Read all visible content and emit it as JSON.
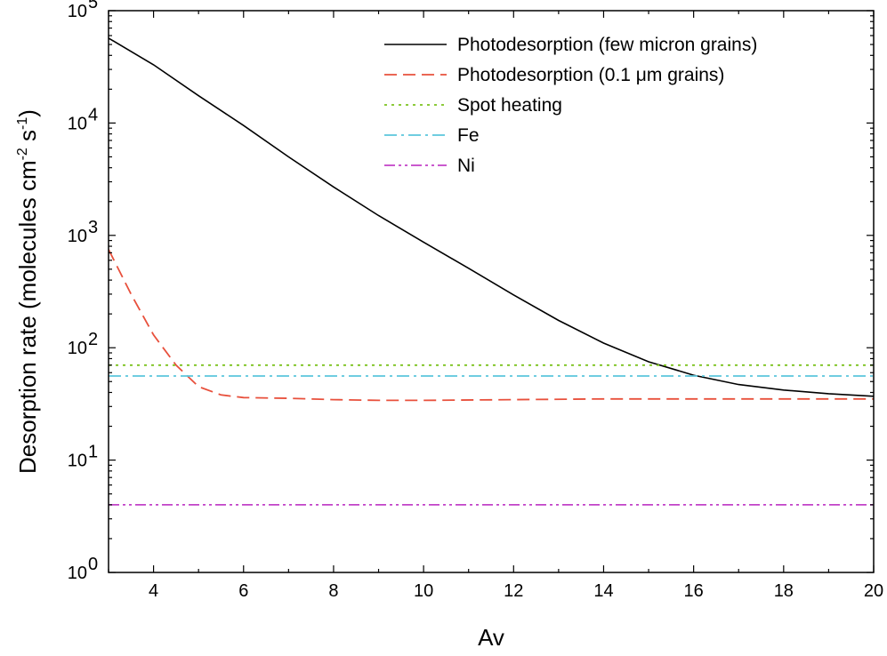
{
  "chart_data": {
    "type": "line",
    "title": "",
    "xlabel": "Av",
    "ylabel": "Desorption rate (molecules cm",
    "ylabel_sup1": "-2",
    "ylabel_mid": " s",
    "ylabel_sup2": "-1",
    "ylabel_end": ")",
    "xlim": [
      3,
      20
    ],
    "ylim": [
      1,
      100000
    ],
    "yscale": "log",
    "xticks": [
      4,
      6,
      8,
      10,
      12,
      14,
      16,
      18,
      20
    ],
    "xtick_labels": [
      "4",
      "6",
      "8",
      "10",
      "12",
      "14",
      "16",
      "18",
      "20"
    ],
    "yticks": [
      {
        "base": "10",
        "exp": "0"
      },
      {
        "base": "10",
        "exp": "1"
      },
      {
        "base": "10",
        "exp": "2"
      },
      {
        "base": "10",
        "exp": "3"
      },
      {
        "base": "10",
        "exp": "4"
      },
      {
        "base": "10",
        "exp": "5"
      }
    ],
    "grid": false,
    "legend_position": "top-right",
    "series": [
      {
        "name": "Photodesorption (few micron grains)",
        "color": "#000000",
        "style": "solid",
        "x": [
          3,
          4,
          5,
          6,
          7,
          8,
          9,
          10,
          11,
          12,
          13,
          14,
          15,
          16,
          17,
          18,
          19,
          20
        ],
        "y": [
          57000,
          33000,
          17500,
          9500,
          5000,
          2700,
          1500,
          870,
          510,
          295,
          175,
          110,
          75,
          57,
          47,
          42,
          39,
          37
        ]
      },
      {
        "name": "Photodesorption (0.1 μm grains)",
        "color": "#e8503c",
        "style": "dashed",
        "x": [
          3,
          3.5,
          4,
          4.5,
          5,
          5.5,
          6,
          7,
          8,
          9,
          10,
          12,
          14,
          16,
          18,
          20
        ],
        "y": [
          750,
          300,
          130,
          70,
          45,
          38,
          36,
          35.5,
          34.5,
          34,
          34,
          34.5,
          35,
          35,
          35,
          35
        ]
      },
      {
        "name": "Spot heating",
        "color": "#7cc21e",
        "style": "dotted",
        "x": [
          3,
          20
        ],
        "y": [
          70,
          70
        ]
      },
      {
        "name": "Fe",
        "color": "#5bc6dc",
        "style": "dashdot",
        "x": [
          3,
          20
        ],
        "y": [
          56,
          56
        ]
      },
      {
        "name": "Ni",
        "color": "#c242c8",
        "style": "dashdotdot",
        "x": [
          3,
          20
        ],
        "y": [
          4,
          4
        ]
      }
    ]
  }
}
